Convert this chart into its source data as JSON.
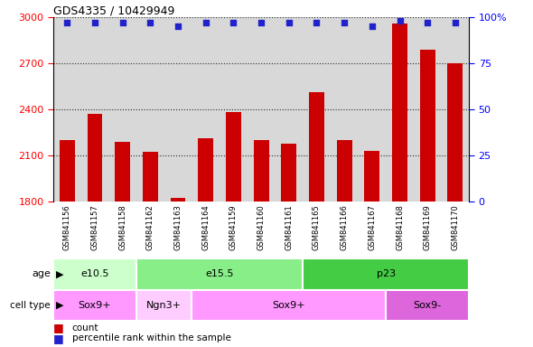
{
  "title": "GDS4335 / 10429949",
  "samples": [
    "GSM841156",
    "GSM841157",
    "GSM841158",
    "GSM841162",
    "GSM841163",
    "GSM841164",
    "GSM841159",
    "GSM841160",
    "GSM841161",
    "GSM841165",
    "GSM841166",
    "GSM841167",
    "GSM841168",
    "GSM841169",
    "GSM841170"
  ],
  "counts": [
    2200,
    2370,
    2190,
    2120,
    1820,
    2210,
    2380,
    2200,
    2175,
    2510,
    2200,
    2130,
    2960,
    2790,
    2700
  ],
  "percentile_ranks": [
    97,
    97,
    97,
    97,
    95,
    97,
    97,
    97,
    97,
    97,
    97,
    95,
    98,
    97,
    97
  ],
  "ylim_left": [
    1800,
    3000
  ],
  "ylim_right": [
    0,
    100
  ],
  "yticks_left": [
    1800,
    2100,
    2400,
    2700,
    3000
  ],
  "yticks_right": [
    0,
    25,
    50,
    75,
    100
  ],
  "bar_color": "#cc0000",
  "dot_color": "#2222cc",
  "age_groups": [
    {
      "label": "e10.5",
      "start": 0,
      "end": 3,
      "color": "#ccffcc"
    },
    {
      "label": "e15.5",
      "start": 3,
      "end": 9,
      "color": "#88ee88"
    },
    {
      "label": "p23",
      "start": 9,
      "end": 15,
      "color": "#44cc44"
    }
  ],
  "cell_groups": [
    {
      "label": "Sox9+",
      "start": 0,
      "end": 3,
      "color": "#ff99ff"
    },
    {
      "label": "Ngn3+",
      "start": 3,
      "end": 5,
      "color": "#ffccff"
    },
    {
      "label": "Sox9+",
      "start": 5,
      "end": 12,
      "color": "#ff99ff"
    },
    {
      "label": "Sox9-",
      "start": 12,
      "end": 15,
      "color": "#dd66dd"
    }
  ],
  "plot_bg": "#d8d8d8",
  "tick_area_bg": "#d8d8d8",
  "bar_width": 0.55
}
